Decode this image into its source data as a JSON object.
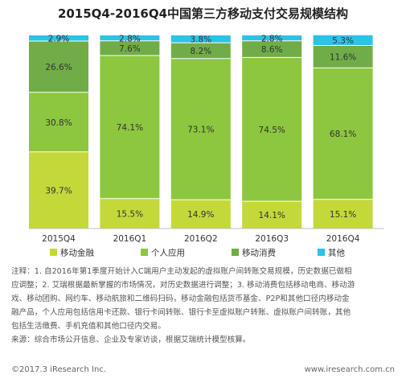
{
  "title": "2015Q4-2016Q4中国第三方移动支付交易规模结构",
  "colors": {
    "移动金融": "#c4d83a",
    "个人应用": "#8dc63f",
    "移动消费": "#70ad47",
    "其他": "#2dc2e6"
  },
  "chart_data": {
    "type": "bar",
    "stacked": true,
    "categories": [
      "2015Q4",
      "2016Q1",
      "2016Q2",
      "2016Q3",
      "2016Q4"
    ],
    "ylim": [
      0,
      100
    ],
    "legend_position": "bottom",
    "series": [
      {
        "name": "移动金融",
        "values": [
          39.7,
          15.5,
          14.9,
          14.1,
          15.1
        ]
      },
      {
        "name": "个人应用",
        "values": [
          30.8,
          74.1,
          73.1,
          74.5,
          68.1
        ]
      },
      {
        "name": "移动消费",
        "values": [
          26.6,
          7.6,
          8.2,
          8.6,
          11.6
        ]
      },
      {
        "name": "其他",
        "values": [
          2.9,
          2.8,
          3.8,
          2.8,
          5.3
        ]
      }
    ]
  },
  "notes": {
    "line1": "注释：1. 自2016年第1季度开始计入C端用户主动发起的虚拟账户间转账交易规模，历史数据已做相",
    "line2": "应调整；2. 艾瑞根据最新掌握的市场情况，对历史数据进行调整；3. 移动消费包括移动电商、移动游",
    "line3": "戏、移动团购、网约车、移动航旅和二维码扫码，移动金融包括货币基金、P2P和其他口径内移动金",
    "line4": "融产品，个人应用包括信用卡还款、银行卡间转账、银行卡至虚拟账户转账、虚拟账户间转账，其他",
    "line5": "包括生活缴费、手机充值和其他口径内交易。",
    "source": "来源：综合市场公开信息、企业及专家访谈，根据艾瑞统计模型核算。"
  },
  "footer": {
    "left": "©2017.3 iResearch Inc.",
    "right": "www.iresearch.com.cn"
  }
}
